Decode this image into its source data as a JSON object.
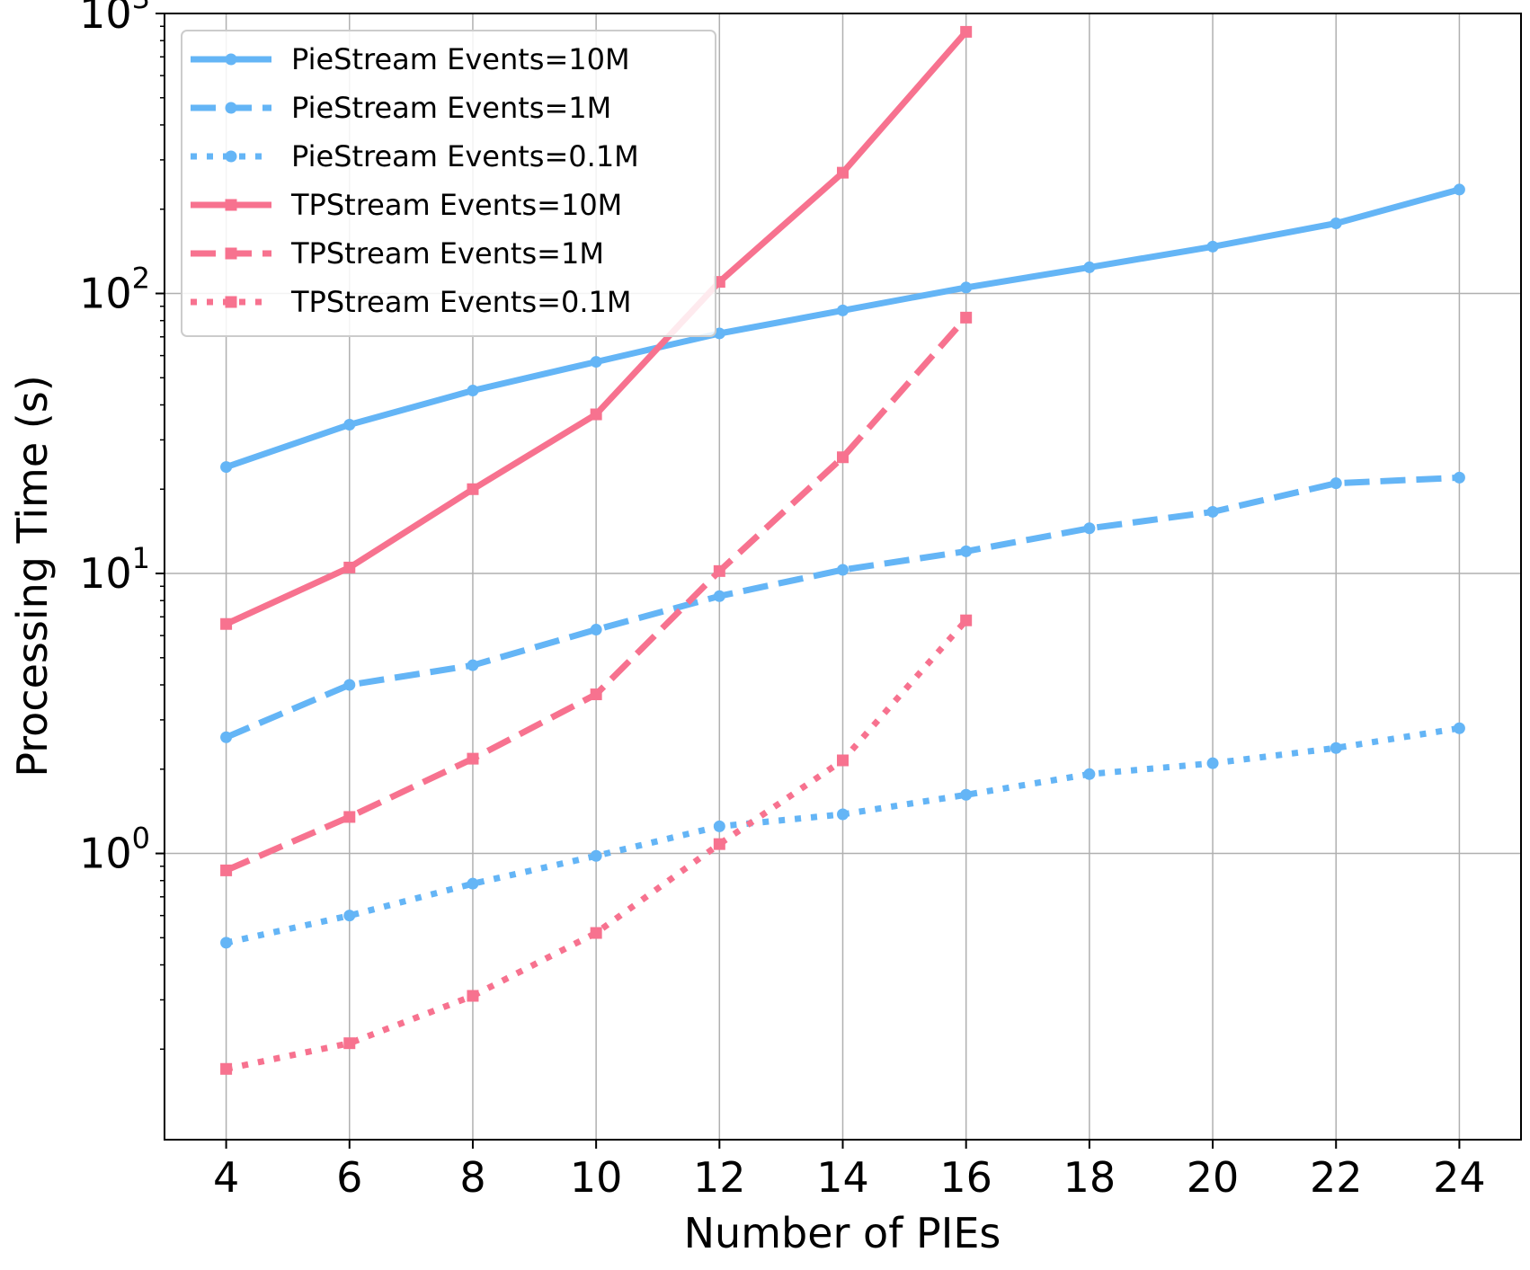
{
  "chart_data": {
    "type": "line",
    "title": "",
    "xlabel": "Number of PIEs",
    "ylabel": "Processing Time (s)",
    "yscale": "log",
    "xlim": [
      3,
      25
    ],
    "ylim": [
      0.095,
      1000
    ],
    "xticks": [
      "4",
      "6",
      "8",
      "10",
      "12",
      "14",
      "16",
      "18",
      "20",
      "22",
      "24"
    ],
    "yticks": [
      {
        "value": 1,
        "base": "10",
        "exp": "0"
      },
      {
        "value": 10,
        "base": "10",
        "exp": "1"
      },
      {
        "value": 100,
        "base": "10",
        "exp": "2"
      },
      {
        "value": 1000,
        "base": "10",
        "exp": "3"
      }
    ],
    "grid": true,
    "legend_position": "top-left",
    "series": [
      {
        "name": "PieStream Events=10M",
        "color": "#64b5f6",
        "dash": "solid",
        "marker": "circle",
        "x": [
          4,
          6,
          8,
          10,
          12,
          14,
          16,
          18,
          20,
          22,
          24
        ],
        "y": [
          24,
          34,
          45,
          57,
          72,
          87,
          105,
          124,
          147,
          178,
          235
        ]
      },
      {
        "name": "PieStream Events=1M",
        "color": "#64b5f6",
        "dash": "dashed",
        "marker": "circle",
        "x": [
          4,
          6,
          8,
          10,
          12,
          14,
          16,
          18,
          20,
          22,
          24
        ],
        "y": [
          2.6,
          4.0,
          4.7,
          6.3,
          8.3,
          10.3,
          12.0,
          14.5,
          16.6,
          21.0,
          22.0
        ]
      },
      {
        "name": "PieStream Events=0.1M",
        "color": "#64b5f6",
        "dash": "dotted",
        "marker": "circle",
        "x": [
          4,
          6,
          8,
          10,
          12,
          14,
          16,
          18,
          20,
          22,
          24
        ],
        "y": [
          0.48,
          0.6,
          0.78,
          0.98,
          1.25,
          1.38,
          1.62,
          1.92,
          2.1,
          2.38,
          2.8
        ]
      },
      {
        "name": "TPStream Events=10M",
        "color": "#f7728f",
        "dash": "solid",
        "marker": "square",
        "x": [
          4,
          6,
          8,
          10,
          12,
          14,
          16
        ],
        "y": [
          6.6,
          10.5,
          20,
          37,
          110,
          270,
          860
        ]
      },
      {
        "name": "TPStream Events=1M",
        "color": "#f7728f",
        "dash": "dashed",
        "marker": "square",
        "x": [
          4,
          6,
          8,
          10,
          12,
          14,
          16
        ],
        "y": [
          0.87,
          1.35,
          2.18,
          3.7,
          10.2,
          26,
          82
        ]
      },
      {
        "name": "TPStream Events=0.1M",
        "color": "#f7728f",
        "dash": "dotted",
        "marker": "square",
        "x": [
          4,
          6,
          8,
          10,
          12,
          14,
          16
        ],
        "y": [
          0.17,
          0.21,
          0.31,
          0.52,
          1.08,
          2.15,
          6.8
        ]
      }
    ]
  }
}
